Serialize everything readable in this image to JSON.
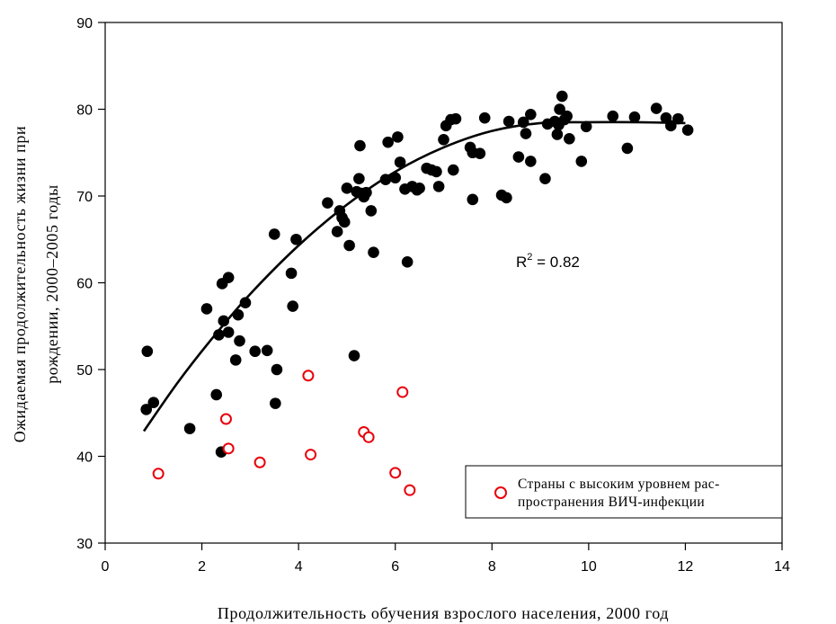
{
  "chart_data": {
    "type": "scatter",
    "title": "",
    "xlabel": "Продолжительность обучения взрослого населения, 2000 год",
    "ylabel_line1": "Ожидаемая продолжительность жизни при",
    "ylabel_line2": "рождении, 2000–2005 годы",
    "xlim": [
      0,
      14
    ],
    "ylim": [
      30,
      90
    ],
    "x_ticks": [
      "0",
      "2",
      "4",
      "6",
      "8",
      "10",
      "12",
      "14"
    ],
    "y_ticks": [
      "30",
      "40",
      "50",
      "60",
      "70",
      "80",
      "90"
    ],
    "grid": false,
    "annotation": {
      "prefix": "R",
      "sup": "2",
      "suffix": " = 0.82"
    },
    "legend": {
      "position": "bottom-right",
      "line1": "Страны с высоким уровнем рас-",
      "line2": "пространения ВИЧ-инфекции"
    },
    "colors": {
      "filled": "#000000",
      "hiv": "#e8000b",
      "axis": "#000000"
    },
    "series": [
      {
        "kind": "filled",
        "points": [
          [
            0.85,
            45.4
          ],
          [
            0.87,
            52.1
          ],
          [
            1.0,
            46.2
          ],
          [
            1.75,
            43.2
          ],
          [
            2.1,
            57.0
          ],
          [
            2.3,
            47.1
          ],
          [
            2.35,
            54.0
          ],
          [
            2.4,
            40.5
          ],
          [
            2.42,
            59.9
          ],
          [
            2.45,
            55.6
          ],
          [
            2.55,
            54.3
          ],
          [
            2.55,
            60.6
          ],
          [
            2.7,
            51.1
          ],
          [
            2.75,
            56.3
          ],
          [
            2.78,
            53.3
          ],
          [
            2.9,
            57.7
          ],
          [
            3.1,
            52.1
          ],
          [
            3.35,
            52.2
          ],
          [
            3.5,
            65.6
          ],
          [
            3.52,
            46.1
          ],
          [
            3.55,
            50.0
          ],
          [
            3.85,
            61.1
          ],
          [
            3.88,
            57.3
          ],
          [
            3.95,
            65.0
          ],
          [
            4.6,
            69.2
          ],
          [
            4.8,
            65.9
          ],
          [
            4.85,
            68.3
          ],
          [
            4.9,
            67.5
          ],
          [
            4.95,
            67.0
          ],
          [
            5.0,
            70.9
          ],
          [
            5.05,
            64.3
          ],
          [
            5.15,
            51.6
          ],
          [
            5.2,
            70.5
          ],
          [
            5.25,
            72.0
          ],
          [
            5.27,
            75.8
          ],
          [
            5.3,
            70.3
          ],
          [
            5.35,
            69.9
          ],
          [
            5.4,
            70.4
          ],
          [
            5.5,
            68.3
          ],
          [
            5.55,
            63.5
          ],
          [
            5.8,
            71.9
          ],
          [
            5.85,
            76.2
          ],
          [
            6.0,
            72.1
          ],
          [
            6.05,
            76.8
          ],
          [
            6.1,
            73.9
          ],
          [
            6.2,
            70.8
          ],
          [
            6.25,
            62.4
          ],
          [
            6.35,
            71.1
          ],
          [
            6.45,
            70.7
          ],
          [
            6.5,
            70.9
          ],
          [
            6.65,
            73.2
          ],
          [
            6.75,
            73.0
          ],
          [
            6.85,
            72.8
          ],
          [
            6.9,
            71.1
          ],
          [
            7.0,
            76.5
          ],
          [
            7.05,
            78.1
          ],
          [
            7.15,
            78.8
          ],
          [
            7.2,
            73.0
          ],
          [
            7.25,
            78.9
          ],
          [
            7.55,
            75.6
          ],
          [
            7.6,
            69.6
          ],
          [
            7.6,
            75.0
          ],
          [
            7.75,
            74.9
          ],
          [
            7.85,
            79.0
          ],
          [
            8.2,
            70.1
          ],
          [
            8.3,
            69.8
          ],
          [
            8.35,
            78.6
          ],
          [
            8.55,
            74.5
          ],
          [
            8.65,
            78.5
          ],
          [
            8.7,
            77.2
          ],
          [
            8.8,
            79.4
          ],
          [
            8.8,
            74.0
          ],
          [
            9.1,
            72.0
          ],
          [
            9.15,
            78.3
          ],
          [
            9.3,
            78.6
          ],
          [
            9.35,
            77.1
          ],
          [
            9.38,
            78.2
          ],
          [
            9.4,
            80.0
          ],
          [
            9.45,
            81.5
          ],
          [
            9.5,
            78.8
          ],
          [
            9.55,
            79.2
          ],
          [
            9.6,
            76.6
          ],
          [
            9.85,
            74.0
          ],
          [
            9.95,
            78.0
          ],
          [
            10.5,
            79.2
          ],
          [
            10.8,
            75.5
          ],
          [
            10.95,
            79.1
          ],
          [
            11.4,
            80.1
          ],
          [
            11.6,
            79.0
          ],
          [
            11.7,
            78.1
          ],
          [
            11.85,
            78.9
          ],
          [
            12.05,
            77.6
          ]
        ]
      },
      {
        "kind": "hiv",
        "points": [
          [
            1.1,
            38.0
          ],
          [
            2.5,
            44.3
          ],
          [
            2.55,
            40.9
          ],
          [
            3.2,
            39.3
          ],
          [
            4.2,
            49.3
          ],
          [
            4.25,
            40.2
          ],
          [
            5.35,
            42.8
          ],
          [
            5.45,
            42.2
          ],
          [
            6.0,
            38.1
          ],
          [
            6.15,
            47.4
          ],
          [
            6.3,
            36.1
          ]
        ]
      }
    ],
    "trend_points": [
      [
        0.8,
        42.9
      ],
      [
        1.5,
        48.5
      ],
      [
        2.2,
        53.5
      ],
      [
        3.0,
        58.7
      ],
      [
        4.0,
        64.3
      ],
      [
        5.0,
        69.0
      ],
      [
        6.0,
        72.8
      ],
      [
        7.0,
        75.6
      ],
      [
        8.0,
        77.5
      ],
      [
        9.0,
        78.4
      ],
      [
        10.0,
        78.5
      ],
      [
        11.0,
        78.5
      ],
      [
        12.0,
        78.4
      ]
    ]
  }
}
